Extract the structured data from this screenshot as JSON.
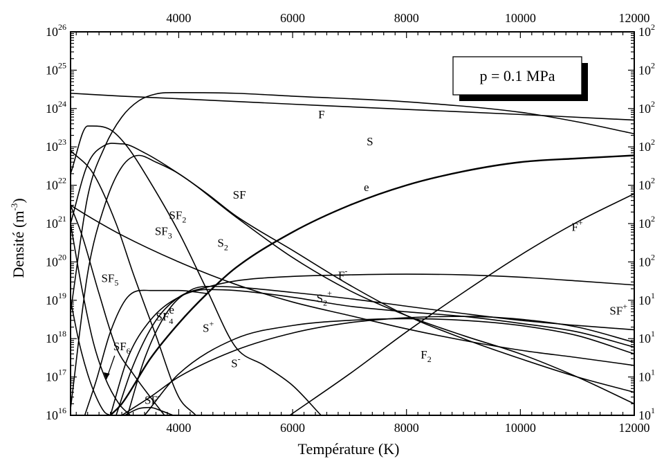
{
  "chart_data": {
    "type": "line",
    "title": "",
    "xlabel": "Température (K)",
    "ylabel": "Densité (m-3)",
    "ylabel_parts": {
      "base": "Densité (m",
      "sup": "-3",
      "close": ")"
    },
    "yscale": "log",
    "xlim": [
      2100,
      12000
    ],
    "ylim": [
      1e+16,
      1e+26
    ],
    "x_ticks": [
      4000,
      6000,
      8000,
      10000,
      12000
    ],
    "x_tick_labels": [
      "4000",
      "6000",
      "8000",
      "10000",
      "12000"
    ],
    "y_tick_exponents": [
      16,
      17,
      18,
      19,
      20,
      21,
      22,
      23,
      24,
      25,
      26
    ],
    "y_tick_base": "10",
    "grid": false,
    "annotation": "p = 0.1 MPa",
    "series": [
      {
        "name": "F",
        "label": {
          "base": "F",
          "sub": "",
          "sup": ""
        },
        "label_at": [
          6450,
          5.5e+23
        ],
        "x": [
          2100,
          3000,
          4000,
          6000,
          8000,
          10000,
          12000
        ],
        "y": [
          2.5e+24,
          2.1e+24,
          1.8e+24,
          1.3e+24,
          9.5e+23,
          7e+23,
          5e+23
        ]
      },
      {
        "name": "S",
        "label": {
          "base": "S",
          "sub": "",
          "sup": ""
        },
        "label_at": [
          7300,
          1.1e+23
        ],
        "x": [
          2100,
          2400,
          2700,
          3000,
          3300,
          3600,
          4000,
          5000,
          6000,
          8000,
          10000,
          11000,
          12000
        ],
        "y": [
          5e+18,
          5e+21,
          1e+23,
          6e+23,
          1.6e+24,
          2.4e+24,
          2.6e+24,
          2.5e+24,
          2.1e+24,
          1.5e+24,
          8e+23,
          4.5e+23,
          2.2e+23
        ]
      },
      {
        "name": "e",
        "label": {
          "base": "e",
          "sub": "",
          "sup": ""
        },
        "label_at": [
          7250,
          7e+21
        ],
        "bold": true,
        "x": [
          2800,
          3000,
          3500,
          4000,
          4500,
          5000,
          6000,
          7000,
          8000,
          9000,
          10000,
          11000,
          12000
        ],
        "y": [
          1e+16,
          2e+16,
          3e+17,
          2.5e+18,
          1.5e+19,
          7e+19,
          6e+20,
          3e+21,
          1e+22,
          2.3e+22,
          4e+22,
          5e+22,
          6e+22
        ]
      },
      {
        "name": "F+",
        "label": {
          "base": "F",
          "sub": "",
          "sup": "+"
        },
        "label_at": [
          10900,
          6.5e+20
        ],
        "x": [
          5950,
          7000,
          8000,
          9000,
          10000,
          11000,
          12000
        ],
        "y": [
          1e+16,
          1.2e+17,
          1.5e+18,
          1.6e+19,
          1.5e+20,
          1.1e+21,
          6e+21
        ]
      },
      {
        "name": "F-",
        "label": {
          "base": "F",
          "sub": "",
          "sup": "-"
        },
        "label_at": [
          6800,
          3.5e+19
        ],
        "x": [
          2900,
          3200,
          3600,
          4000,
          4500,
          5000,
          6000,
          7000,
          8000,
          9000,
          10000,
          11000,
          12000
        ],
        "y": [
          1e+16,
          2e+17,
          3e+18,
          1.2e+19,
          2.2e+19,
          3.2e+19,
          4.2e+19,
          4.6e+19,
          4.8e+19,
          4.6e+19,
          4e+19,
          3.2e+19,
          2.5e+19
        ]
      },
      {
        "name": "S2+",
        "label": {
          "base": "S",
          "sub": "2",
          "sup": "+"
        },
        "label_at": [
          6420,
          9e+18
        ],
        "x": [
          3100,
          3400,
          3800,
          4200,
          4500,
          5000,
          6000,
          7000,
          8000,
          9000,
          10000,
          11000,
          12000
        ],
        "y": [
          1e+16,
          3e+17,
          5e+18,
          1.8e+19,
          2.3e+19,
          2.2e+19,
          1.6e+19,
          1.1e+19,
          7e+18,
          4.5e+18,
          3e+18,
          2.2e+18,
          1.7e+18
        ]
      },
      {
        "name": "SF+",
        "label": {
          "base": "SF",
          "sub": "",
          "sup": "+"
        },
        "label_at": [
          11880,
          4.2e+18
        ],
        "x": [
          3000,
          3500,
          4000,
          5000,
          6000,
          7000,
          8000,
          9000,
          10000,
          11000,
          12000
        ],
        "y": [
          1e+16,
          3e+16,
          1e+17,
          5e+17,
          1.4e+18,
          2.6e+18,
          3.5e+18,
          3.8e+18,
          3.2e+18,
          2e+18,
          8e+17
        ]
      },
      {
        "name": "S+",
        "label": {
          "base": "S",
          "sub": "",
          "sup": "+"
        },
        "label_at": [
          4420,
          1.5e+18
        ],
        "x": [
          2800,
          3100,
          3500,
          4000,
          4500,
          5000,
          6000,
          7000,
          8000,
          9000,
          10000,
          11000,
          12000
        ],
        "y": [
          1e+16,
          3e+17,
          3e+18,
          1.2e+19,
          1.9e+19,
          1.8e+19,
          1.2e+19,
          7e+18,
          5e+18,
          3.8e+18,
          2.5e+18,
          1.5e+18,
          6e+17
        ]
      },
      {
        "name": "S-",
        "label": {
          "base": "S",
          "sub": "",
          "sup": "-"
        },
        "label_at": [
          4920,
          1.8e+17
        ],
        "x": [
          3400,
          4000,
          5000,
          6000,
          7000,
          8000,
          9000,
          10000,
          11000,
          12000
        ],
        "y": [
          1e+16,
          1.2e+17,
          1e+18,
          2.2e+18,
          3e+18,
          3.3e+18,
          3e+18,
          2.2e+18,
          1.2e+18,
          4e+17
        ]
      },
      {
        "name": "F2",
        "label": {
          "base": "F",
          "sub": "2",
          "sup": ""
        },
        "label_at": [
          8250,
          3e+17
        ],
        "x": [
          2100,
          2500,
          3000,
          4000,
          5000,
          6000,
          7000,
          8000,
          9000,
          10000,
          11000,
          12000
        ],
        "y": [
          3e+21,
          1.3e+21,
          5e+20,
          1e+20,
          2.6e+19,
          9e+18,
          4e+18,
          1.8e+18,
          9e+17,
          5e+17,
          3.2e+17,
          2e+17
        ]
      },
      {
        "name": "SF",
        "label": {
          "base": "SF",
          "sub": "",
          "sup": ""
        },
        "label_at": [
          4950,
          4.5e+21
        ],
        "x": [
          2100,
          2400,
          2700,
          3000,
          3300,
          3600,
          4000,
          5000,
          6000,
          7000,
          8000,
          9000,
          10000,
          11000,
          12000
        ],
        "y": [
          1.5e+16,
          5e+19,
          3e+21,
          3e+22,
          6e+22,
          4e+22,
          2e+22,
          1.5e+21,
          1.3e+20,
          1.8e+19,
          4e+18,
          1.2e+18,
          4e+17,
          1e+17,
          2e+16
        ]
      },
      {
        "name": "S2",
        "label": {
          "base": "S",
          "sub": "2",
          "sup": ""
        },
        "label_at": [
          4680,
          2.5e+20
        ],
        "x": [
          2100,
          2400,
          2700,
          3000,
          3400,
          4000,
          4500,
          5000,
          6000,
          7000,
          8000,
          9000,
          10000,
          11000,
          12000
        ],
        "y": [
          1e+21,
          3.5e+22,
          1.1e+23,
          1.2e+23,
          7e+22,
          2e+22,
          6e+21,
          1.6e+21,
          2e+20,
          2.5e+19,
          4e+18,
          1e+18,
          3e+17,
          1e+17,
          4e+16
        ]
      },
      {
        "name": "SF2",
        "label": {
          "base": "SF",
          "sub": "2",
          "sup": ""
        },
        "label_at": [
          3830,
          1.3e+21
        ],
        "x": [
          2100,
          2400,
          2800,
          3100,
          3500,
          4000,
          4500,
          5000,
          5500,
          6000,
          6500
        ],
        "y": [
          2e+22,
          3.5e+23,
          2.8e+23,
          1e+23,
          1.2e+22,
          6e+20,
          1.8e+19,
          6e+17,
          2e+17,
          6e+16,
          1e+16
        ]
      },
      {
        "name": "SF3",
        "label": {
          "base": "SF",
          "sub": "3",
          "sup": ""
        },
        "label_at": [
          3580,
          5e+20
        ],
        "x": [
          2100,
          2500,
          2900,
          3200,
          3600,
          4000,
          4300
        ],
        "y": [
          8e+22,
          2e+22,
          1e+21,
          5e+19,
          1.2e+18,
          3e+16,
          1e+16
        ]
      },
      {
        "name": "SF4",
        "label": {
          "base": "SF",
          "sub": "4",
          "sup": ""
        },
        "label_at": [
          3600,
          3e+18
        ],
        "x": [
          2100,
          2300,
          2600,
          2900,
          3200,
          3500,
          3750
        ],
        "y": [
          3e+21,
          5e+20,
          1.5e+19,
          6e+17,
          1.2e+17,
          3e+16,
          1e+16
        ]
      },
      {
        "name": "SF5",
        "label": {
          "base": "SF",
          "sub": "5",
          "sup": ""
        },
        "label_at": [
          2640,
          3e+19
        ],
        "x": [
          2100,
          2300,
          2500,
          2700,
          2950,
          3150
        ],
        "y": [
          1e+21,
          2e+19,
          8e+17,
          1e+17,
          2e+16,
          1e+16
        ]
      },
      {
        "name": "SF6",
        "label": {
          "base": "SF",
          "sub": "6",
          "sup": ""
        },
        "label_at": [
          2850,
          5e+17
        ],
        "x": [
          2100,
          2250,
          2400,
          2550,
          2700,
          2800
        ],
        "y": [
          1e+19,
          8e+17,
          1.2e+17,
          3e+16,
          1.2e+16,
          1e+16
        ]
      },
      {
        "name": "SF-",
        "label": {
          "base": "SF",
          "sub": "",
          "sup": "-"
        },
        "label_at": [
          3400,
          2e+16
        ],
        "x": [
          3050,
          3300,
          3500,
          3700,
          3900
        ],
        "y": [
          1e+16,
          1.5e+16,
          1.6e+16,
          1.3e+16,
          1e+16
        ]
      },
      {
        "name": "e (dense, low T)",
        "label": {
          "base": "e",
          "sub": "",
          "sup": ""
        },
        "label_at": [
          3830,
          4.5e+18
        ],
        "x": [
          2350,
          2550,
          2800,
          3100,
          3500,
          4000,
          4500
        ],
        "y": [
          1e+16,
          8e+16,
          1.5e+18,
          1.2e+19,
          1.8e+19,
          1.8e+19,
          1.5e+19
        ]
      }
    ]
  }
}
